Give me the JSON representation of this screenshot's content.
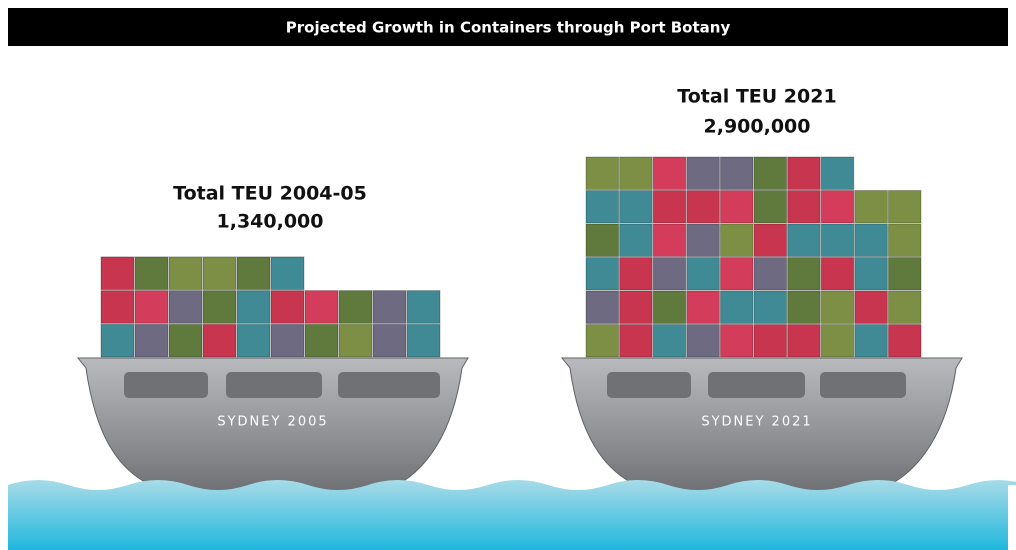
{
  "header": {
    "title": "Projected Growth in Containers through Port Botany"
  },
  "ships": [
    {
      "heading": "Total TEU 2004-05",
      "total": "1,340,000",
      "name": "SYDNEY 2005"
    },
    {
      "heading": "Total TEU 2021",
      "total": "2,900,000",
      "name": "SYDNEY 2021"
    }
  ]
}
